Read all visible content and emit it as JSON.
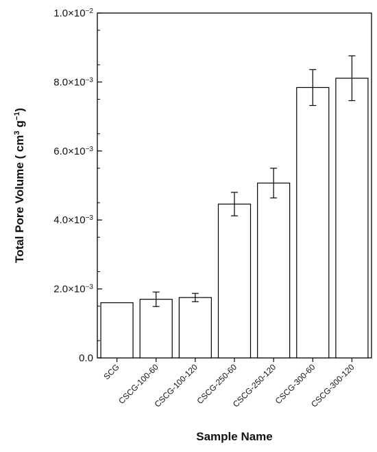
{
  "chart_data": {
    "type": "bar",
    "xlabel": "Sample Name",
    "ylabel": {
      "prefix": "Total Pore Volume ( cm",
      "sup1": "3",
      "mid": " g",
      "sup2": "−1",
      "suffix": ")"
    },
    "ylim": [
      0,
      0.01
    ],
    "yticks": [
      {
        "value": 0,
        "mant": "0.0",
        "exp": ""
      },
      {
        "value": 0.002,
        "mant": "2.0×10",
        "exp": "−3"
      },
      {
        "value": 0.004,
        "mant": "4.0×10",
        "exp": "−3"
      },
      {
        "value": 0.006,
        "mant": "6.0×10",
        "exp": "−3"
      },
      {
        "value": 0.008,
        "mant": "8.0×10",
        "exp": "−3"
      },
      {
        "value": 0.01,
        "mant": "1.0×10",
        "exp": "−2"
      }
    ],
    "categories": [
      "SCG",
      "CSCG-100-60",
      "CSCG-100-120",
      "CSCG-250-60",
      "CSCG-250-120",
      "CSCG-300-60",
      "CSCG-300-120"
    ],
    "values": [
      0.0016,
      0.0017,
      0.00175,
      0.00446,
      0.00507,
      0.00784,
      0.00811
    ],
    "errors": [
      0,
      0.00021,
      0.00012,
      0.00034,
      0.00043,
      0.00052,
      0.00065
    ],
    "grid": false,
    "bar_fill": "#ffffff",
    "bar_stroke": "#000000"
  }
}
